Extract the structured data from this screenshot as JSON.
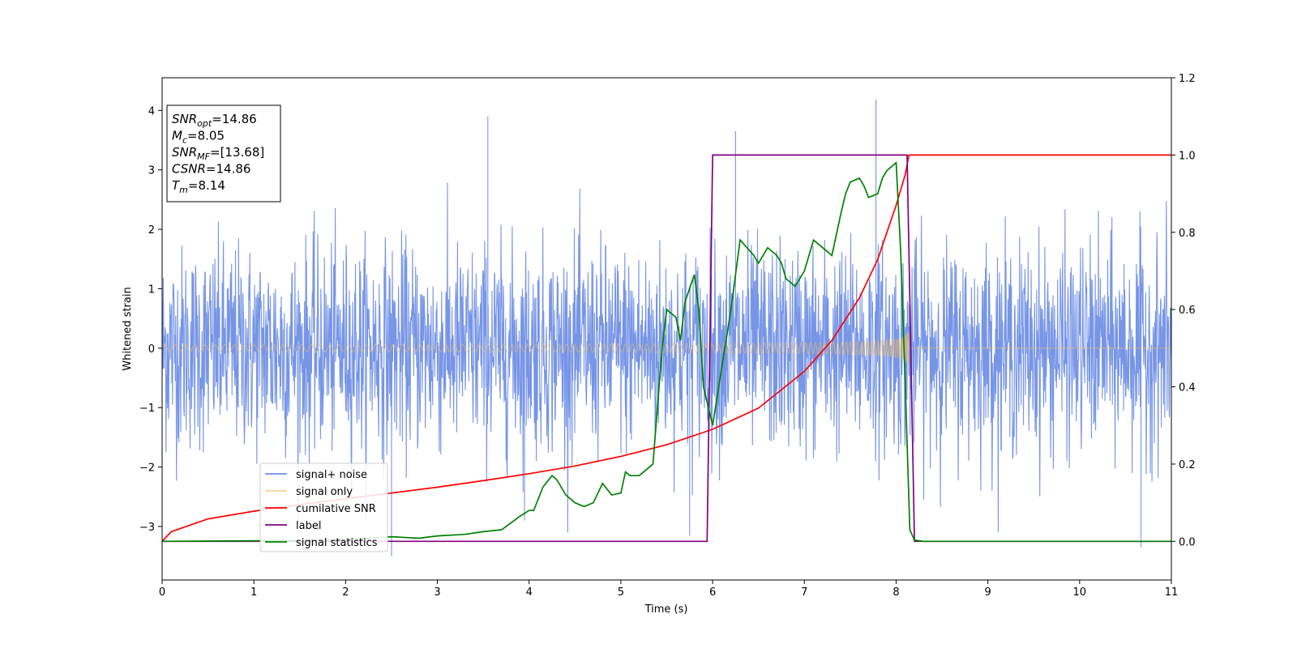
{
  "chart_data": {
    "type": "line",
    "xlabel": "Time (s)",
    "ylabel": "Whitened strain",
    "xlim": [
      0,
      11
    ],
    "ylim": [
      -3.9,
      4.55
    ],
    "ylim_right": [
      -0.1,
      1.2
    ],
    "x_ticks": [
      "0",
      "1",
      "2",
      "3",
      "4",
      "5",
      "6",
      "7",
      "8",
      "9",
      "10",
      "11"
    ],
    "y_ticks": [
      "−3",
      "−2",
      "−1",
      "0",
      "1",
      "2",
      "3",
      "4"
    ],
    "y_right_ticks": [
      "0.0",
      "0.2",
      "0.4",
      "0.6",
      "0.8",
      "1.0",
      "1.2"
    ],
    "grid": false,
    "legend_position": "lower-left",
    "stats": [
      {
        "base": "SNR",
        "sub": "opt",
        "value": "=14.86"
      },
      {
        "base": "M",
        "sub": "c",
        "value": "=8.05"
      },
      {
        "base": "SNR",
        "sub": "MF",
        "value": "=[13.68]"
      },
      {
        "base": "CSNR",
        "sub": "",
        "value": "=14.86"
      },
      {
        "base": "T",
        "sub": "m",
        "value": "=8.14"
      }
    ],
    "series": [
      {
        "name": "signal+ noise",
        "color": "#6f8fe6",
        "axis": "left",
        "kind": "noise",
        "noise_std": 0.85,
        "peaks": [
          [
            3.55,
            3.9
          ],
          [
            6.25,
            3.65
          ],
          [
            7.78,
            4.18
          ],
          [
            2.5,
            -3.5
          ],
          [
            3.95,
            -2.9
          ],
          [
            10.67,
            -3.35
          ],
          [
            5.75,
            -3.15
          ]
        ]
      },
      {
        "name": "signal only",
        "color": "#f5c060",
        "axis": "left",
        "kind": "chirp",
        "coalescence": 8.14,
        "amplitude_start": 0.06,
        "amplitude_peak": 0.78
      },
      {
        "name": "cumilative SNR",
        "color": "#ff0000",
        "axis": "right",
        "x": [
          0,
          0.1,
          0.5,
          1,
          1.5,
          2,
          2.5,
          3,
          3.5,
          4,
          4.5,
          5,
          5.5,
          6,
          6.5,
          7,
          7.3,
          7.6,
          7.8,
          8.0,
          8.1,
          8.14,
          9,
          10,
          11
        ],
        "values": [
          0.0,
          0.025,
          0.058,
          0.078,
          0.095,
          0.11,
          0.125,
          0.14,
          0.157,
          0.175,
          0.195,
          0.22,
          0.25,
          0.29,
          0.345,
          0.44,
          0.52,
          0.63,
          0.73,
          0.87,
          0.95,
          1.0,
          1.0,
          1.0,
          1.0
        ]
      },
      {
        "name": "label",
        "color": "#800080",
        "axis": "right",
        "x": [
          0,
          5.94,
          6.0,
          8.12,
          8.2,
          11
        ],
        "values": [
          0,
          0,
          1,
          1,
          0,
          0
        ]
      },
      {
        "name": "signal statistics",
        "color": "#008000",
        "axis": "right",
        "x": [
          0,
          1.5,
          2.0,
          2.5,
          2.8,
          3.0,
          3.3,
          3.5,
          3.7,
          3.9,
          4.0,
          4.05,
          4.15,
          4.25,
          4.3,
          4.4,
          4.5,
          4.6,
          4.7,
          4.8,
          4.9,
          5.0,
          5.05,
          5.1,
          5.2,
          5.3,
          5.35,
          5.45,
          5.5,
          5.6,
          5.65,
          5.7,
          5.8,
          5.85,
          5.9,
          6.0,
          6.1,
          6.2,
          6.3,
          6.45,
          6.5,
          6.6,
          6.7,
          6.75,
          6.8,
          6.9,
          7.0,
          7.1,
          7.2,
          7.3,
          7.4,
          7.45,
          7.5,
          7.6,
          7.65,
          7.7,
          7.8,
          7.85,
          7.9,
          8.0,
          8.05,
          8.1,
          8.15,
          8.2,
          8.3,
          9,
          11
        ],
        "values": [
          0.0,
          0.002,
          0.004,
          0.012,
          0.008,
          0.014,
          0.018,
          0.025,
          0.03,
          0.065,
          0.08,
          0.08,
          0.14,
          0.17,
          0.16,
          0.12,
          0.1,
          0.09,
          0.1,
          0.15,
          0.12,
          0.125,
          0.18,
          0.17,
          0.17,
          0.19,
          0.2,
          0.5,
          0.6,
          0.58,
          0.52,
          0.62,
          0.69,
          0.6,
          0.4,
          0.3,
          0.45,
          0.6,
          0.78,
          0.74,
          0.72,
          0.76,
          0.74,
          0.72,
          0.68,
          0.66,
          0.7,
          0.78,
          0.76,
          0.74,
          0.85,
          0.9,
          0.93,
          0.94,
          0.92,
          0.89,
          0.9,
          0.94,
          0.96,
          0.98,
          0.75,
          0.4,
          0.03,
          0.003,
          0.0,
          0.0,
          0.0
        ]
      }
    ]
  }
}
